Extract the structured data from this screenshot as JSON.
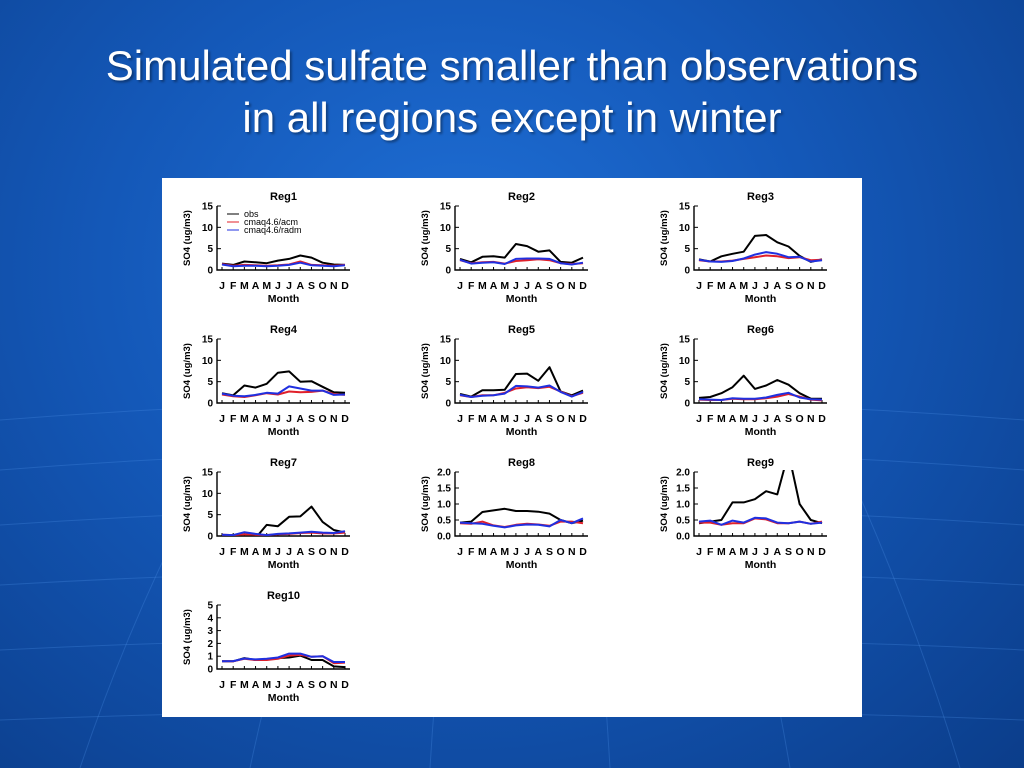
{
  "slide": {
    "title_line1": "Simulated sulfate smaller than observations",
    "title_line2": "in all regions except in winter"
  },
  "colors": {
    "background": "#1458b8",
    "obs": "#000000",
    "acm": "#e0202a",
    "radm": "#2030e0"
  },
  "chart_data": [
    {
      "type": "line",
      "title": "Reg1",
      "xlabel": "Month",
      "ylabel": "SO4 (ug/m3)",
      "categories": [
        "J",
        "F",
        "M",
        "A",
        "M",
        "J",
        "J",
        "A",
        "S",
        "O",
        "N",
        "D"
      ],
      "ylim": [
        0,
        15
      ],
      "yticks": [
        "0",
        "5",
        "10",
        "15"
      ],
      "legend": [
        {
          "label": "obs",
          "color": "#000000"
        },
        {
          "label": "cmaq4.6/acm",
          "color": "#e0202a"
        },
        {
          "label": "cmaq4.6/radm",
          "color": "#2030e0"
        }
      ],
      "series": [
        {
          "values": [
            1.5,
            1.2,
            2.0,
            1.8,
            1.6,
            2.2,
            2.6,
            3.4,
            2.9,
            1.7,
            1.3,
            1.2
          ]
        },
        {
          "values": [
            1.4,
            1.0,
            1.2,
            1.1,
            1.0,
            1.1,
            1.3,
            2.0,
            1.2,
            1.1,
            1.0,
            1.2
          ]
        },
        {
          "values": [
            1.3,
            0.9,
            1.0,
            1.0,
            0.9,
            1.0,
            1.2,
            1.7,
            1.1,
            1.0,
            0.9,
            1.1
          ]
        }
      ]
    },
    {
      "type": "line",
      "title": "Reg2",
      "xlabel": "Month",
      "ylabel": "SO4 (ug/m3)",
      "categories": [
        "J",
        "F",
        "M",
        "A",
        "M",
        "J",
        "J",
        "A",
        "S",
        "O",
        "N",
        "D"
      ],
      "ylim": [
        0,
        15
      ],
      "yticks": [
        "0",
        "5",
        "10",
        "15"
      ],
      "series": [
        {
          "values": [
            2.6,
            1.8,
            3.1,
            3.2,
            2.9,
            6.1,
            5.6,
            4.3,
            4.6,
            1.9,
            1.7,
            2.9
          ]
        },
        {
          "values": [
            2.3,
            1.6,
            1.8,
            1.9,
            1.5,
            2.1,
            2.3,
            2.5,
            2.3,
            1.6,
            1.4,
            1.6
          ]
        },
        {
          "values": [
            2.4,
            1.5,
            1.7,
            1.8,
            1.4,
            2.6,
            2.7,
            2.7,
            2.6,
            1.6,
            1.3,
            1.7
          ]
        }
      ]
    },
    {
      "type": "line",
      "title": "Reg3",
      "xlabel": "Month",
      "ylabel": "SO4 (ug/m3)",
      "categories": [
        "J",
        "F",
        "M",
        "A",
        "M",
        "J",
        "J",
        "A",
        "S",
        "O",
        "N",
        "D"
      ],
      "ylim": [
        0,
        15
      ],
      "yticks": [
        "0",
        "5",
        "10",
        "15"
      ],
      "series": [
        {
          "values": [
            2.5,
            2.0,
            3.2,
            3.8,
            4.3,
            8.0,
            8.2,
            6.5,
            5.5,
            3.3,
            1.9,
            2.5
          ]
        },
        {
          "values": [
            2.3,
            2.0,
            2.0,
            2.2,
            2.6,
            3.0,
            3.4,
            3.2,
            2.8,
            3.0,
            2.3,
            2.4
          ]
        },
        {
          "values": [
            2.4,
            2.0,
            1.9,
            2.1,
            2.7,
            3.6,
            4.2,
            3.8,
            3.0,
            3.1,
            2.0,
            2.3
          ]
        }
      ]
    },
    {
      "type": "line",
      "title": "Reg4",
      "xlabel": "Month",
      "ylabel": "SO4 (ug/m3)",
      "categories": [
        "J",
        "F",
        "M",
        "A",
        "M",
        "J",
        "J",
        "A",
        "S",
        "O",
        "N",
        "D"
      ],
      "ylim": [
        0,
        15
      ],
      "yticks": [
        "0",
        "5",
        "10",
        "15"
      ],
      "series": [
        {
          "values": [
            2.3,
            1.8,
            4.1,
            3.6,
            4.5,
            7.1,
            7.4,
            5.0,
            5.1,
            3.8,
            2.5,
            2.4
          ]
        },
        {
          "values": [
            2.0,
            1.6,
            1.4,
            1.8,
            2.3,
            2.0,
            2.7,
            2.5,
            2.6,
            2.9,
            2.1,
            1.9
          ]
        },
        {
          "values": [
            2.2,
            1.7,
            1.6,
            1.9,
            2.4,
            2.2,
            3.9,
            3.4,
            2.9,
            2.9,
            1.9,
            2.0
          ]
        }
      ]
    },
    {
      "type": "line",
      "title": "Reg5",
      "xlabel": "Month",
      "ylabel": "SO4 (ug/m3)",
      "categories": [
        "J",
        "F",
        "M",
        "A",
        "M",
        "J",
        "J",
        "A",
        "S",
        "O",
        "N",
        "D"
      ],
      "ylim": [
        0,
        15
      ],
      "yticks": [
        "0",
        "5",
        "10",
        "15"
      ],
      "series": [
        {
          "values": [
            2.1,
            1.5,
            3.0,
            3.0,
            3.1,
            6.8,
            6.9,
            5.2,
            8.4,
            2.7,
            1.8,
            2.9
          ]
        },
        {
          "values": [
            1.8,
            1.4,
            1.8,
            1.8,
            2.4,
            3.4,
            3.7,
            3.5,
            3.8,
            2.7,
            1.6,
            2.4
          ]
        },
        {
          "values": [
            1.9,
            1.4,
            1.7,
            1.8,
            2.2,
            4.0,
            3.9,
            3.6,
            4.1,
            2.6,
            1.5,
            2.6
          ]
        }
      ]
    },
    {
      "type": "line",
      "title": "Reg6",
      "xlabel": "Month",
      "ylabel": "SO4 (ug/m3)",
      "categories": [
        "J",
        "F",
        "M",
        "A",
        "M",
        "J",
        "J",
        "A",
        "S",
        "O",
        "N",
        "D"
      ],
      "ylim": [
        0,
        15
      ],
      "yticks": [
        "0",
        "5",
        "10",
        "15"
      ],
      "series": [
        {
          "values": [
            1.2,
            1.4,
            2.3,
            3.7,
            6.4,
            3.3,
            4.1,
            5.4,
            4.3,
            2.3,
            1.0,
            1.0
          ]
        },
        {
          "values": [
            0.8,
            0.7,
            0.7,
            1.0,
            0.9,
            0.9,
            1.1,
            1.5,
            2.1,
            1.5,
            0.8,
            0.6
          ]
        },
        {
          "values": [
            0.9,
            0.8,
            0.7,
            1.1,
            1.0,
            1.0,
            1.3,
            1.9,
            2.4,
            1.3,
            0.9,
            0.8
          ]
        }
      ]
    },
    {
      "type": "line",
      "title": "Reg7",
      "xlabel": "Month",
      "ylabel": "SO4 (ug/m3)",
      "categories": [
        "J",
        "F",
        "M",
        "A",
        "M",
        "J",
        "J",
        "A",
        "S",
        "O",
        "N",
        "D"
      ],
      "ylim": [
        0,
        15
      ],
      "yticks": [
        "0",
        "5",
        "10",
        "15"
      ],
      "series": [
        {
          "values": [
            null,
            null,
            null,
            -0.5,
            2.6,
            2.3,
            4.5,
            4.6,
            6.9,
            3.3,
            1.4,
            0.8
          ]
        },
        {
          "values": [
            0.3,
            0.2,
            0.4,
            0.3,
            0.2,
            0.4,
            0.5,
            0.7,
            0.8,
            0.6,
            0.6,
            0.8
          ]
        },
        {
          "values": [
            0.3,
            0.2,
            0.9,
            0.5,
            0.2,
            0.5,
            0.6,
            0.8,
            1.0,
            0.8,
            0.7,
            1.1
          ]
        }
      ]
    },
    {
      "type": "line",
      "title": "Reg8",
      "xlabel": "Month",
      "ylabel": "SO4 (ug/m3)",
      "categories": [
        "J",
        "F",
        "M",
        "A",
        "M",
        "J",
        "J",
        "A",
        "S",
        "O",
        "N",
        "D"
      ],
      "ylim": [
        0,
        2.0
      ],
      "yticks": [
        "0.0",
        "0.5",
        "1.0",
        "1.5",
        "2.0"
      ],
      "series": [
        {
          "values": [
            0.42,
            0.45,
            0.75,
            0.8,
            0.85,
            0.78,
            0.78,
            0.76,
            0.7,
            0.5,
            0.4,
            0.48
          ]
        },
        {
          "values": [
            0.4,
            0.38,
            0.45,
            0.33,
            0.28,
            0.35,
            0.38,
            0.36,
            0.32,
            0.45,
            0.45,
            0.4
          ]
        },
        {
          "values": [
            0.42,
            0.4,
            0.38,
            0.32,
            0.27,
            0.33,
            0.36,
            0.35,
            0.3,
            0.5,
            0.4,
            0.55
          ]
        }
      ]
    },
    {
      "type": "line",
      "title": "Reg9",
      "xlabel": "Month",
      "ylabel": "SO4 (ug/m3)",
      "categories": [
        "J",
        "F",
        "M",
        "A",
        "M",
        "J",
        "J",
        "A",
        "S",
        "O",
        "N",
        "D"
      ],
      "ylim": [
        0,
        2.0
      ],
      "yticks": [
        "0.0",
        "0.5",
        "1.0",
        "1.5",
        "2.0"
      ],
      "series": [
        {
          "values": [
            0.4,
            0.45,
            0.5,
            1.05,
            1.05,
            1.15,
            1.4,
            1.3,
            2.6,
            1.0,
            0.5,
            0.4
          ]
        },
        {
          "values": [
            0.42,
            0.42,
            0.35,
            0.4,
            0.4,
            0.55,
            0.52,
            0.4,
            0.4,
            0.45,
            0.38,
            0.45
          ]
        },
        {
          "values": [
            0.45,
            0.48,
            0.35,
            0.48,
            0.42,
            0.57,
            0.55,
            0.42,
            0.4,
            0.45,
            0.38,
            0.42
          ]
        }
      ]
    },
    {
      "type": "line",
      "title": "Reg10",
      "xlabel": "Month",
      "ylabel": "SO4 (ug/m3)",
      "categories": [
        "J",
        "F",
        "M",
        "A",
        "M",
        "J",
        "J",
        "A",
        "S",
        "O",
        "N",
        "D"
      ],
      "ylim": [
        0,
        5
      ],
      "yticks": [
        "0",
        "1",
        "2",
        "3",
        "4",
        "5"
      ],
      "series": [
        {
          "values": [
            0.6,
            0.6,
            0.85,
            0.7,
            0.75,
            0.85,
            0.9,
            1.05,
            0.7,
            0.7,
            0.2,
            0.15
          ]
        },
        {
          "values": [
            0.6,
            0.6,
            0.8,
            0.7,
            0.7,
            0.8,
            1.05,
            1.1,
            0.95,
            1.0,
            0.45,
            0.5
          ]
        },
        {
          "values": [
            0.6,
            0.62,
            0.82,
            0.75,
            0.8,
            0.9,
            1.2,
            1.2,
            0.95,
            1.0,
            0.55,
            0.55
          ]
        }
      ]
    }
  ]
}
